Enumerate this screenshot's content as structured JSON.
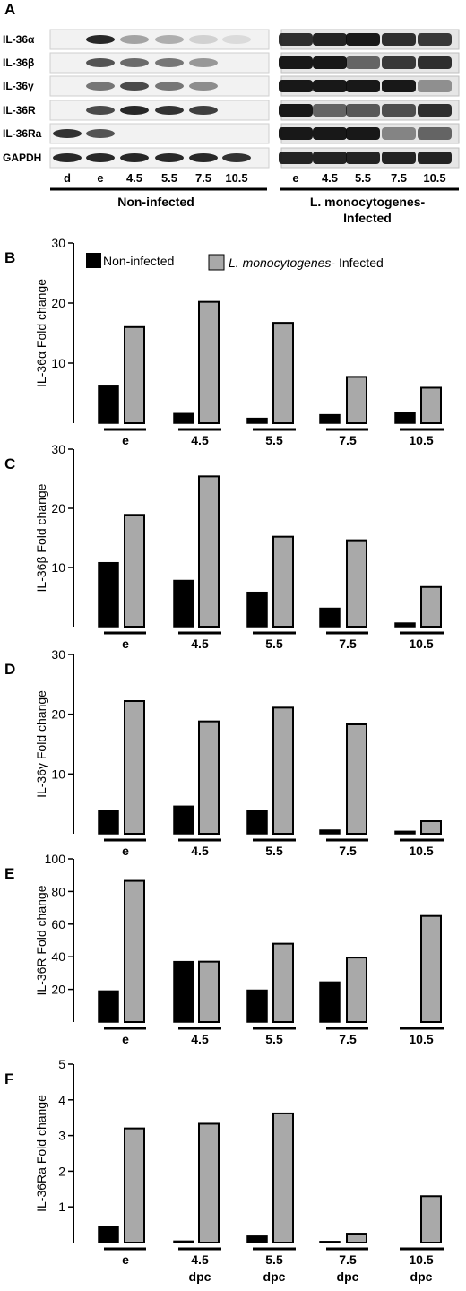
{
  "panels": [
    "A",
    "B",
    "C",
    "D",
    "E",
    "F"
  ],
  "blot": {
    "proteins": [
      "IL-36α",
      "IL-36β",
      "IL-36γ",
      "IL-36R",
      "IL-36Ra",
      "GAPDH"
    ],
    "noninfected_lanes": [
      "d",
      "e",
      "4.5",
      "5.5",
      "7.5",
      "10.5"
    ],
    "infected_lanes": [
      "e",
      "4.5",
      "5.5",
      "7.5",
      "10.5"
    ],
    "noninfected_group": "Non-infected",
    "infected_group_line1": "L. monocytogenes-",
    "infected_group_line2": "Infected"
  },
  "legend": {
    "noninfected": "Non-infected",
    "infected_italic": "L. monocytogenes",
    "infected_rest": "- Infected"
  },
  "colors": {
    "noninfected": "#000000",
    "infected": "#a9a9a9"
  },
  "xlabel_sub": "dpc",
  "chart_data": [
    {
      "type": "bar",
      "categories": [
        "e",
        "4.5",
        "5.5",
        "7.5",
        "10.5"
      ],
      "ylabel": "IL-36α Fold change",
      "ylim": [
        0,
        30
      ],
      "yticks": [
        10,
        20,
        30
      ],
      "series": [
        {
          "name": "Non-infected",
          "values": [
            6.3,
            1.6,
            0.8,
            1.4,
            1.7
          ]
        },
        {
          "name": "L. monocytogenes- Infected",
          "values": [
            16.0,
            20.2,
            16.7,
            7.7,
            5.9
          ]
        }
      ]
    },
    {
      "type": "bar",
      "categories": [
        "e",
        "4.5",
        "5.5",
        "7.5",
        "10.5"
      ],
      "ylabel": "IL-36β Fold change",
      "ylim": [
        0,
        30
      ],
      "yticks": [
        10,
        20,
        30
      ],
      "series": [
        {
          "name": "Non-infected",
          "values": [
            10.8,
            7.8,
            5.8,
            3.1,
            0.6
          ]
        },
        {
          "name": "L. monocytogenes- Infected",
          "values": [
            18.9,
            25.4,
            15.2,
            14.6,
            6.7
          ]
        }
      ]
    },
    {
      "type": "bar",
      "categories": [
        "e",
        "4.5",
        "5.5",
        "7.5",
        "10.5"
      ],
      "ylabel": "IL-36γ Fold change",
      "ylim": [
        0,
        30
      ],
      "yticks": [
        10,
        20,
        30
      ],
      "series": [
        {
          "name": "Non-infected",
          "values": [
            3.9,
            4.6,
            3.8,
            0.6,
            0.4
          ]
        },
        {
          "name": "L. monocytogenes- Infected",
          "values": [
            22.2,
            18.8,
            21.1,
            18.3,
            2.1
          ]
        }
      ]
    },
    {
      "type": "bar",
      "categories": [
        "e",
        "4.5",
        "5.5",
        "7.5",
        "10.5"
      ],
      "ylabel": "IL-36R Fold change",
      "ylim": [
        0,
        100
      ],
      "yticks": [
        20,
        40,
        60,
        80,
        100
      ],
      "series": [
        {
          "name": "Non-infected",
          "values": [
            19,
            37,
            19.5,
            24.5,
            0
          ]
        },
        {
          "name": "L. monocytogenes- Infected",
          "values": [
            86.5,
            37,
            48,
            39.5,
            65
          ]
        }
      ]
    },
    {
      "type": "bar",
      "categories": [
        "e",
        "4.5",
        "5.5",
        "7.5",
        "10.5"
      ],
      "ylabel": "IL-36Ra Fold change",
      "ylim": [
        0,
        5
      ],
      "yticks": [
        1,
        2,
        3,
        4,
        5
      ],
      "series": [
        {
          "name": "Non-infected",
          "values": [
            0.45,
            0.04,
            0.18,
            0.03,
            0
          ]
        },
        {
          "name": "L. monocytogenes- Infected",
          "values": [
            3.2,
            3.33,
            3.62,
            0.25,
            1.3
          ]
        }
      ]
    }
  ]
}
